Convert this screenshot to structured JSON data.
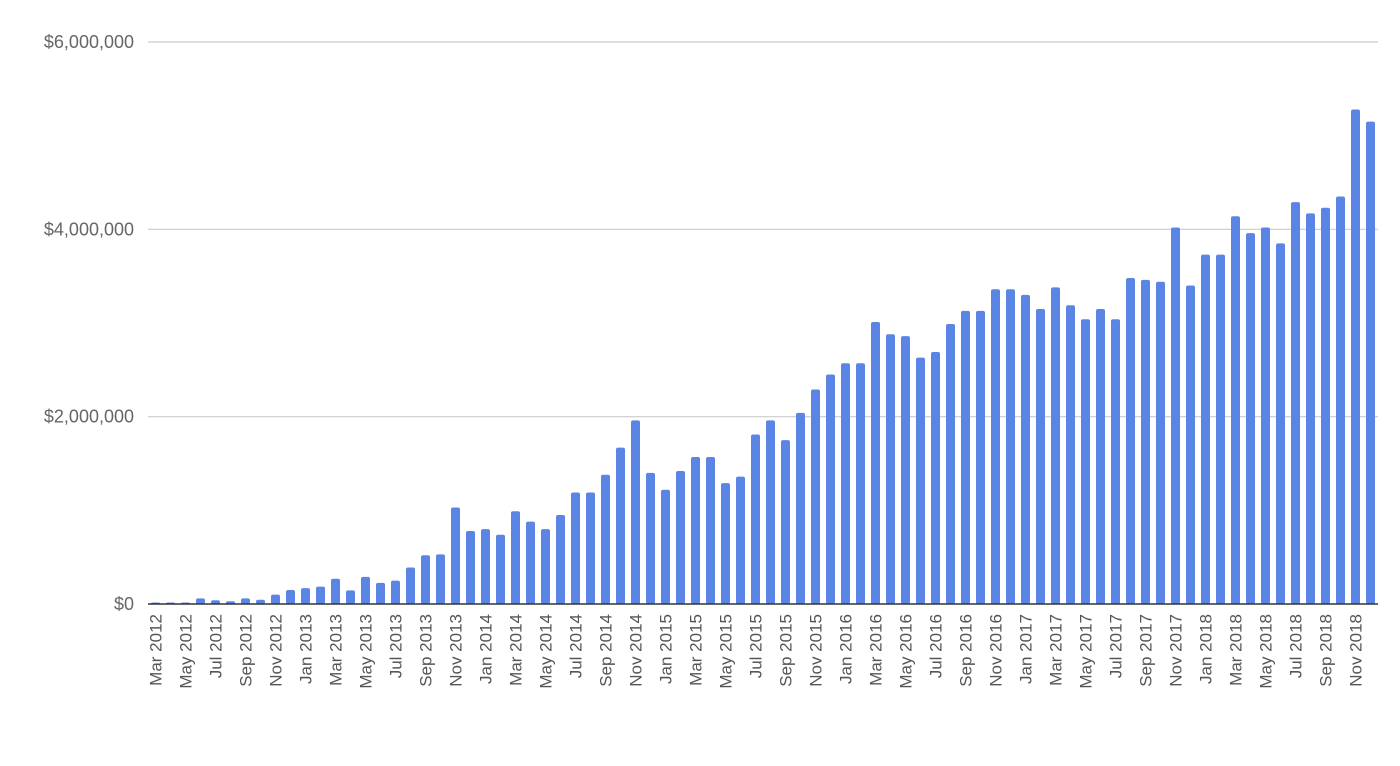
{
  "chart_data": {
    "type": "bar",
    "title": "",
    "xlabel": "",
    "ylabel": "",
    "ylim": [
      0,
      6000000
    ],
    "y_ticks": [
      0,
      2000000,
      4000000,
      6000000
    ],
    "y_tick_labels": [
      "$0",
      "$2,000,000",
      "$4,000,000",
      "$6,000,000"
    ],
    "grid": true,
    "legend": "none",
    "bar_color": "#5b85e4",
    "gridline_color": "#cccccc",
    "axis_color": "#333333",
    "categories": [
      "Mar 2012",
      "Apr 2012",
      "May 2012",
      "Jun 2012",
      "Jul 2012",
      "Aug 2012",
      "Sep 2012",
      "Oct 2012",
      "Nov 2012",
      "Dec 2012",
      "Jan 2013",
      "Feb 2013",
      "Mar 2013",
      "Apr 2013",
      "May 2013",
      "Jun 2013",
      "Jul 2013",
      "Aug 2013",
      "Sep 2013",
      "Oct 2013",
      "Nov 2013",
      "Dec 2013",
      "Jan 2014",
      "Feb 2014",
      "Mar 2014",
      "Apr 2014",
      "May 2014",
      "Jun 2014",
      "Jul 2014",
      "Aug 2014",
      "Sep 2014",
      "Oct 2014",
      "Nov 2014",
      "Dec 2014",
      "Jan 2015",
      "Feb 2015",
      "Mar 2015",
      "Apr 2015",
      "May 2015",
      "Jun 2015",
      "Jul 2015",
      "Aug 2015",
      "Sep 2015",
      "Oct 2015",
      "Nov 2015",
      "Dec 2015",
      "Jan 2016",
      "Feb 2016",
      "Mar 2016",
      "Apr 2016",
      "May 2016",
      "Jun 2016",
      "Jul 2016",
      "Aug 2016",
      "Sep 2016",
      "Oct 2016",
      "Nov 2016",
      "Dec 2016",
      "Jan 2017",
      "Feb 2017",
      "Mar 2017",
      "Apr 2017",
      "May 2017",
      "Jun 2017",
      "Jul 2017",
      "Aug 2017",
      "Sep 2017",
      "Oct 2017",
      "Nov 2017",
      "Dec 2017",
      "Jan 2018",
      "Feb 2018",
      "Mar 2018",
      "Apr 2018",
      "May 2018",
      "Jun 2018",
      "Jul 2018",
      "Aug 2018",
      "Sep 2018",
      "Oct 2018",
      "Nov 2018",
      "Dec 2018"
    ],
    "x_tick_labels": [
      "Mar 2012",
      "May 2012",
      "Jul 2012",
      "Sep 2012",
      "Nov 2012",
      "Jan 2013",
      "Mar 2013",
      "May 2013",
      "Jul 2013",
      "Sep 2013",
      "Nov 2013",
      "Jan 2014",
      "Mar 2014",
      "May 2014",
      "Jul 2014",
      "Sep 2014",
      "Nov 2014",
      "Jan 2015",
      "Mar 2015",
      "May 2015",
      "Jul 2015",
      "Sep 2015",
      "Nov 2015",
      "Jan 2016",
      "Mar 2016",
      "May 2016",
      "Jul 2016",
      "Sep 2016",
      "Nov 2016",
      "Jan 2017",
      "Mar 2017",
      "May 2017",
      "Jul 2017",
      "Sep 2017",
      "Nov 2017",
      "Jan 2018",
      "Mar 2018",
      "May 2018",
      "Jul 2018",
      "Sep 2018",
      "Nov 2018"
    ],
    "values": [
      5000,
      5000,
      10000,
      60000,
      40000,
      30000,
      60000,
      45000,
      100000,
      150000,
      170000,
      185000,
      270000,
      145000,
      290000,
      225000,
      250000,
      390000,
      520000,
      530000,
      1030000,
      780000,
      800000,
      740000,
      990000,
      880000,
      800000,
      950000,
      1190000,
      1190000,
      1380000,
      1670000,
      1960000,
      1400000,
      1220000,
      1420000,
      1570000,
      1570000,
      1290000,
      1360000,
      1810000,
      1960000,
      1750000,
      2040000,
      2290000,
      2450000,
      2570000,
      2570000,
      3010000,
      2880000,
      2860000,
      2630000,
      2690000,
      2990000,
      3130000,
      3130000,
      3360000,
      3360000,
      3300000,
      3150000,
      3380000,
      3190000,
      3040000,
      3150000,
      3040000,
      3480000,
      3460000,
      3440000,
      4020000,
      3400000,
      3730000,
      3730000,
      4140000,
      3960000,
      4020000,
      3850000,
      4290000,
      4170000,
      4230000,
      4350000,
      5280000,
      5150000
    ]
  }
}
